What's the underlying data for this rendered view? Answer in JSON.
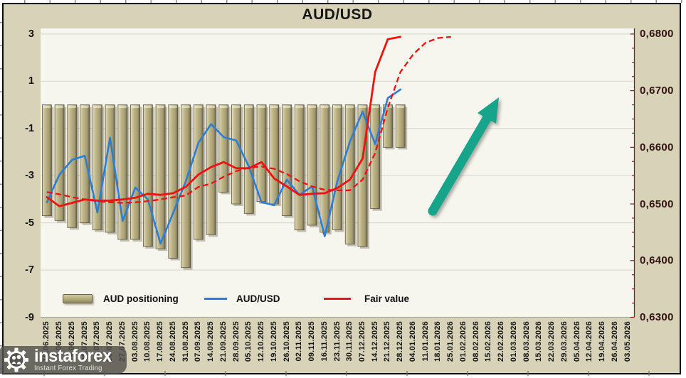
{
  "chart_data": {
    "type": "combo",
    "title": "AUD/USD",
    "categories": [
      "15.06.2025",
      "22.06.2025",
      "29.06.2025",
      "06.07.2025",
      "13.07.2025",
      "20.07.2025",
      "27.07.2025",
      "03.08.2025",
      "10.08.2025",
      "17.08.2025",
      "24.08.2025",
      "31.08.2025",
      "07.09.2025",
      "14.09.2025",
      "21.09.2025",
      "28.09.2025",
      "05.10.2025",
      "12.10.2025",
      "19.10.2025",
      "26.10.2025",
      "02.11.2025",
      "09.11.2025",
      "16.11.2025",
      "23.11.2025",
      "30.11.2025",
      "07.12.2025",
      "14.12.2025",
      "21.12.2025",
      "28.12.2025",
      "04.01.2026",
      "11.01.2026",
      "18.01.2026",
      "25.01.2026",
      "01.02.2026",
      "08.02.2026",
      "15.02.2026",
      "22.02.2026",
      "01.03.2026",
      "08.03.2026",
      "15.03.2026",
      "22.03.2026",
      "29.03.2026",
      "05.04.2026",
      "12.04.2026",
      "19.04.2026",
      "26.04.2026",
      "03.05.2026"
    ],
    "series": [
      {
        "name": "AUD positioning",
        "type": "bar",
        "axis": "left",
        "color": "#b3aa7d",
        "values": [
          -4.7,
          -4.9,
          -5.2,
          -5.0,
          -5.3,
          -5.4,
          -5.7,
          -5.7,
          -6.0,
          -6.1,
          -6.5,
          -6.9,
          -5.7,
          -5.5,
          -3.7,
          -4.2,
          -4.6,
          -4.1,
          -4.2,
          -4.7,
          -5.3,
          -5.1,
          -5.4,
          -5.3,
          -5.9,
          -6.0,
          -4.4,
          -1.8,
          -1.8
        ]
      },
      {
        "name": "AUD/USD",
        "type": "line",
        "axis": "right",
        "color": "#2d7ed3",
        "values": [
          0.6503,
          0.6552,
          0.6578,
          0.6585,
          0.6485,
          0.6617,
          0.647,
          0.6529,
          0.6508,
          0.643,
          0.6484,
          0.654,
          0.6608,
          0.6641,
          0.6618,
          0.6612,
          0.6566,
          0.6503,
          0.6498,
          0.6543,
          0.6516,
          0.6531,
          0.6443,
          0.654,
          0.661,
          0.6663,
          0.6606,
          0.6687,
          0.6702
        ]
      },
      {
        "name": "Fair value",
        "type": "line",
        "axis": "right",
        "color": "#f01111",
        "values": [
          0.6512,
          0.6496,
          0.6502,
          0.6508,
          0.6506,
          0.6506,
          0.6508,
          0.6511,
          0.6518,
          0.6516,
          0.6519,
          0.653,
          0.6552,
          0.6565,
          0.6574,
          0.6563,
          0.6563,
          0.6574,
          0.6545,
          0.6531,
          0.6516,
          0.6518,
          0.6519,
          0.6528,
          0.6543,
          0.658,
          0.6733,
          0.6791,
          0.6795
        ]
      },
      {
        "name": "Fair value (forecast)",
        "type": "line",
        "axis": "right",
        "color": "#f01111",
        "style": "dashed",
        "in_legend": false,
        "values": [
          0.6521,
          0.6517,
          0.6512,
          0.6508,
          0.6505,
          0.6503,
          0.6502,
          0.6503,
          0.6505,
          0.6508,
          0.6512,
          0.6515,
          0.653,
          0.6536,
          0.6548,
          0.6558,
          0.6564,
          0.6566,
          0.6562,
          0.6553,
          0.654,
          0.6531,
          0.6525,
          0.6524,
          0.6524,
          0.6543,
          0.659,
          0.667,
          0.6733,
          0.6764,
          0.6785,
          0.6793,
          0.6795
        ]
      }
    ],
    "left_axis": {
      "min": -9,
      "max": 3,
      "tick_values": [
        3,
        1,
        -1,
        -3,
        -5,
        -7,
        -9
      ],
      "tick_labels": [
        "3",
        "1",
        "-1",
        "-3",
        "-5",
        "-7",
        "-9"
      ],
      "gridline_values": [
        3,
        1,
        -1,
        -3,
        -5,
        -7
      ]
    },
    "right_axis": {
      "min": 0.63,
      "max": 0.68,
      "tick_values": [
        0.68,
        0.67,
        0.66,
        0.65,
        0.64,
        0.63
      ],
      "tick_labels": [
        "0,6800",
        "0,6700",
        "0,6600",
        "0,6500",
        "0,6400",
        "0,6300"
      ],
      "minor_unit": 0.0025
    },
    "legend_position": "bottom-inside",
    "annotations": [
      {
        "type": "arrow-up-right",
        "color": "#16a48b"
      }
    ]
  },
  "logo": {
    "brand": "instaforex",
    "tagline": "Instant Forex Trading"
  },
  "colors": {
    "background": "#d8d3b8",
    "plot_background": "#f6f5ee",
    "bar": "#b3aa7d",
    "audusd_line": "#2d7ed3",
    "fair_value_line": "#f01111",
    "arrow": "#16a48b",
    "right_axis_line": "#7a2423",
    "gridline": "#dbdad0",
    "border": "#0b0b0b"
  }
}
